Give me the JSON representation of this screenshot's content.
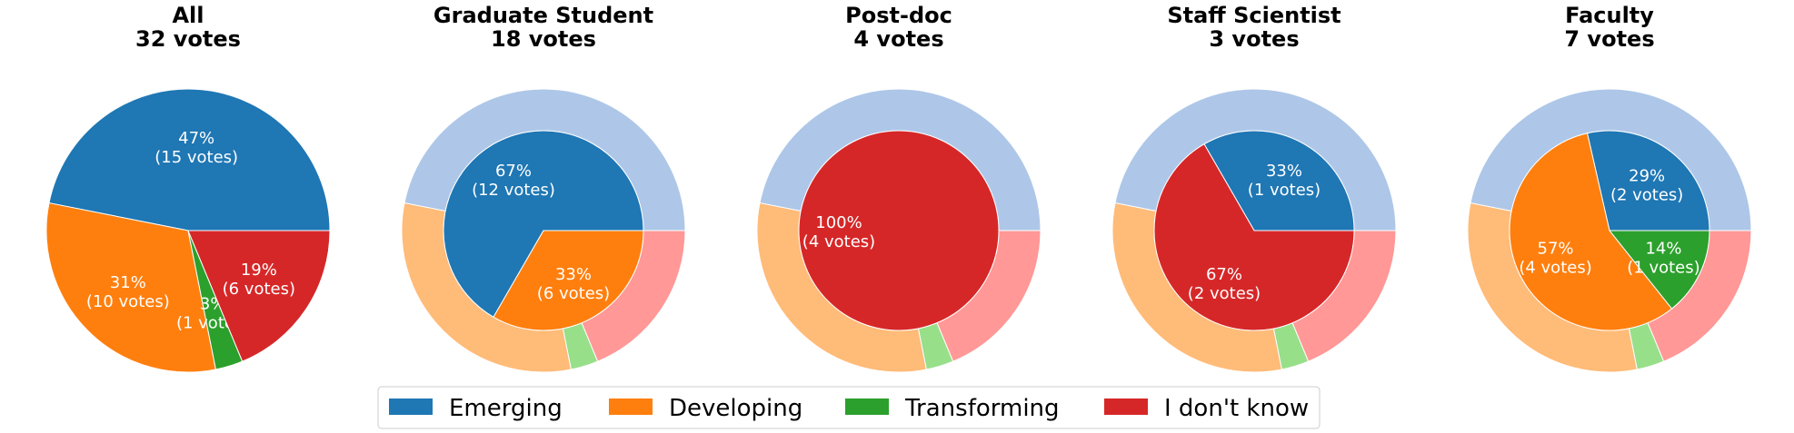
{
  "chart_data": [
    {
      "type": "pie",
      "title": "All",
      "subtitle": "32 votes",
      "categories": [
        "Emerging",
        "Developing",
        "Transforming",
        "I don't know"
      ],
      "values": [
        15,
        10,
        1,
        6
      ],
      "labels": [
        "47%\n(15 votes)",
        "31%\n(10 votes)",
        "3%\n(1 votes)",
        "19%\n(6 votes)"
      ]
    },
    {
      "type": "pie",
      "title": "Graduate Student",
      "subtitle": "18 votes",
      "categories": [
        "Emerging",
        "Developing",
        "Transforming",
        "I don't know"
      ],
      "values": [
        12,
        6,
        0,
        0
      ],
      "labels": [
        "67%\n(12 votes)",
        "33%\n(6 votes)",
        "",
        ""
      ],
      "outer_ring_values": [
        15,
        10,
        1,
        6
      ]
    },
    {
      "type": "pie",
      "title": "Post-doc",
      "subtitle": "4 votes",
      "categories": [
        "Emerging",
        "Developing",
        "Transforming",
        "I don't know"
      ],
      "values": [
        0,
        0,
        0,
        4
      ],
      "labels": [
        "",
        "",
        "",
        "100%\n(4 votes)"
      ],
      "outer_ring_values": [
        15,
        10,
        1,
        6
      ]
    },
    {
      "type": "pie",
      "title": "Staff Scientist",
      "subtitle": "3 votes",
      "categories": [
        "Emerging",
        "Developing",
        "Transforming",
        "I don't know"
      ],
      "values": [
        1,
        0,
        0,
        2
      ],
      "labels": [
        "33%\n(1 votes)",
        "",
        "",
        "67%\n(2 votes)"
      ],
      "outer_ring_values": [
        15,
        10,
        1,
        6
      ]
    },
    {
      "type": "pie",
      "title": "Faculty",
      "subtitle": "7 votes",
      "categories": [
        "Emerging",
        "Developing",
        "Transforming",
        "I don't know"
      ],
      "values": [
        2,
        4,
        1,
        0
      ],
      "labels": [
        "29%\n(2 votes)",
        "57%\n(4 votes)",
        "14%\n(1 votes)",
        ""
      ],
      "outer_ring_values": [
        15,
        10,
        1,
        6
      ]
    }
  ],
  "legend": {
    "placement": "bottom-center",
    "items": [
      "Emerging",
      "Developing",
      "Transforming",
      "I don't know"
    ]
  },
  "colors": {
    "main": [
      "#1f77b4",
      "#ff7f0e",
      "#2ca02c",
      "#d62728"
    ],
    "light": [
      "#aec7e8",
      "#ffbb78",
      "#98df8a",
      "#ff9896"
    ]
  }
}
